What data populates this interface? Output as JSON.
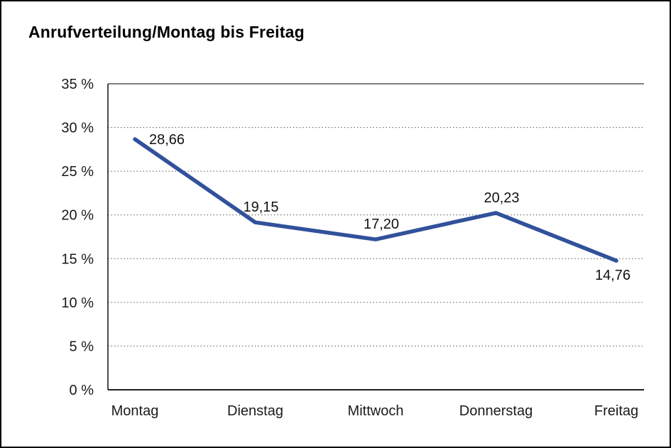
{
  "title": "Anrufverteilung/Montag bis Freitag",
  "colors": {
    "line": "#31519b",
    "grid_dotted": "#555555",
    "axis": "#000000",
    "text": "#1a1a1a",
    "background": "#ffffff",
    "border": "#000000"
  },
  "chart_data": {
    "type": "line",
    "title": "Anrufverteilung/Montag bis Freitag",
    "categories": [
      "Montag",
      "Dienstag",
      "Mittwoch",
      "Donnerstag",
      "Freitag"
    ],
    "values": [
      28.66,
      19.15,
      17.2,
      20.23,
      14.76
    ],
    "value_labels": [
      "28,66",
      "19,15",
      "17,20",
      "20,23",
      "14,76"
    ],
    "xlabel": "",
    "ylabel": "",
    "ylim": [
      0,
      35
    ],
    "ytick_step": 5,
    "ytick_values": [
      0,
      5,
      10,
      15,
      20,
      25,
      30,
      35
    ],
    "ytick_labels": [
      "0 %",
      "5 %",
      "10 %",
      "15 %",
      "20 %",
      "25 %",
      "30 %",
      "35 %"
    ],
    "grid": "horizontal-dotted",
    "legend": "none"
  }
}
